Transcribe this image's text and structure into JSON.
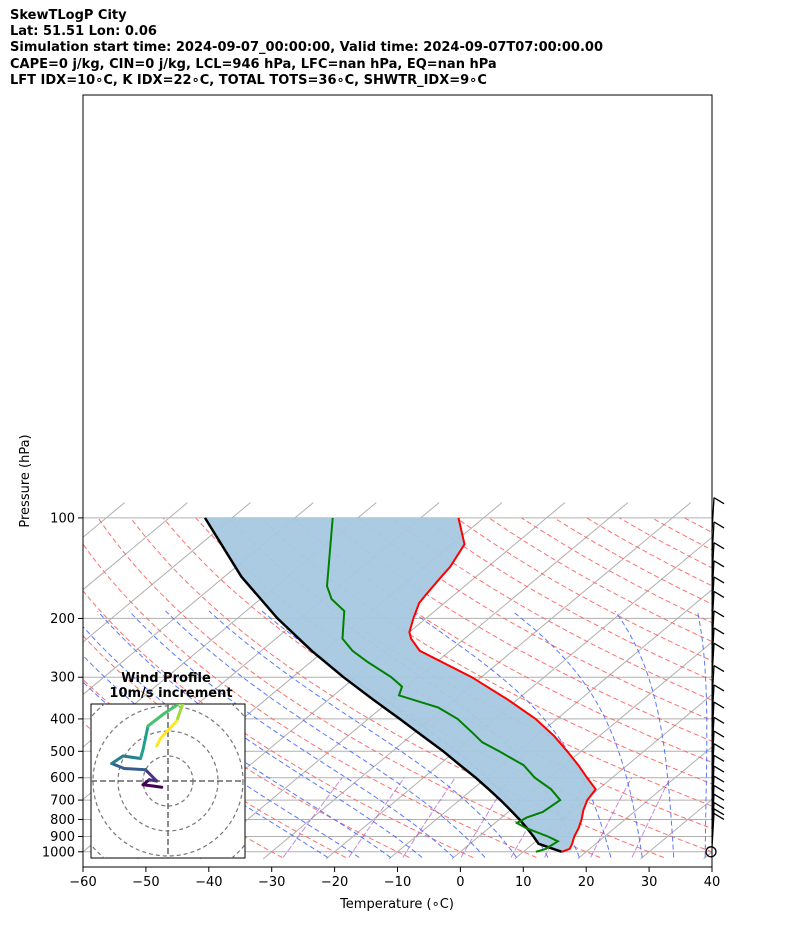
{
  "header": {
    "line1": "SkewTLogP City",
    "line2": "Lat: 51.51   Lon: 0.06",
    "line3": "Simulation start time: 2024-09-07_00:00:00, Valid time: 2024-09-07T07:00:00.00",
    "line4": "CAPE=0 j/kg, CIN=0 j/kg, LCL=946 hPa, LFC=nan hPa, EQ=nan hPa",
    "line5": "LFT IDX=10∘C, K IDX=22∘C, TOTAL TOTS=36∘C, SHWTR_IDX=9∘C"
  },
  "chart_data": {
    "type": "line",
    "title": "SkewTLogP City",
    "xlabel": "Temperature (∘C)",
    "ylabel": "Pressure (hPa)",
    "xlim": [
      -60,
      40
    ],
    "ylim": [
      1040,
      100
    ],
    "y_scale": "log",
    "skew": true,
    "grid": true,
    "x_ticks": [
      -60,
      -50,
      -40,
      -30,
      -20,
      -10,
      0,
      10,
      20,
      30,
      40
    ],
    "x_tick_labels": [
      "−60",
      "−50",
      "−40",
      "−30",
      "−20",
      "−10",
      "0",
      "10",
      "20",
      "30",
      "40"
    ],
    "y_ticks": [
      1000,
      900,
      800,
      700,
      600,
      500,
      400,
      300,
      200,
      100
    ],
    "y_tick_labels": [
      "1000",
      "900",
      "800",
      "700",
      "600",
      "500",
      "400",
      "300",
      "200",
      "100"
    ],
    "series": [
      {
        "role": "temperature",
        "color": "#ff0000",
        "points": [
          [
            1000,
            16.1
          ],
          [
            980,
            16.8
          ],
          [
            950,
            16.3
          ],
          [
            900,
            15.2
          ],
          [
            850,
            14.3
          ],
          [
            800,
            13.1
          ],
          [
            750,
            11.6
          ],
          [
            700,
            10.3
          ],
          [
            650,
            9.6
          ],
          [
            600,
            6.0
          ],
          [
            550,
            2.2
          ],
          [
            500,
            -2.2
          ],
          [
            450,
            -7.2
          ],
          [
            400,
            -13.4
          ],
          [
            350,
            -21.5
          ],
          [
            300,
            -31.5
          ],
          [
            250,
            -44.8
          ],
          [
            230,
            -48.5
          ],
          [
            220,
            -50.0
          ],
          [
            200,
            -52.0
          ],
          [
            180,
            -54.0
          ],
          [
            170,
            -54.5
          ],
          [
            150,
            -55.5
          ],
          [
            140,
            -56.0
          ],
          [
            120,
            -58.0
          ],
          [
            100,
            -64.0
          ]
        ]
      },
      {
        "role": "dewpoint",
        "color": "#008000",
        "points": [
          [
            1000,
            12.0
          ],
          [
            980,
            13.0
          ],
          [
            960,
            13.2
          ],
          [
            930,
            13.5
          ],
          [
            900,
            11.0
          ],
          [
            850,
            6.0
          ],
          [
            820,
            3.5
          ],
          [
            790,
            4.0
          ],
          [
            760,
            5.5
          ],
          [
            700,
            6.0
          ],
          [
            650,
            2.5
          ],
          [
            600,
            -2.3
          ],
          [
            550,
            -6.5
          ],
          [
            500,
            -13.0
          ],
          [
            470,
            -17.4
          ],
          [
            440,
            -20.8
          ],
          [
            400,
            -25.8
          ],
          [
            370,
            -31.0
          ],
          [
            340,
            -39.6
          ],
          [
            320,
            -40.8
          ],
          [
            300,
            -44.3
          ],
          [
            270,
            -51.0
          ],
          [
            250,
            -55.5
          ],
          [
            230,
            -59.4
          ],
          [
            210,
            -61.8
          ],
          [
            190,
            -64.4
          ],
          [
            175,
            -68.7
          ],
          [
            160,
            -71.9
          ],
          [
            100,
            -84.0
          ]
        ]
      },
      {
        "role": "parcel",
        "color": "#000000",
        "points": [
          [
            1000,
            16.1
          ],
          [
            946,
            10.9
          ],
          [
            900,
            8.7
          ],
          [
            850,
            6.1
          ],
          [
            800,
            3.2
          ],
          [
            750,
            0.0
          ],
          [
            700,
            -3.5
          ],
          [
            650,
            -7.4
          ],
          [
            600,
            -11.7
          ],
          [
            550,
            -16.6
          ],
          [
            500,
            -21.9
          ],
          [
            450,
            -28.1
          ],
          [
            400,
            -35.0
          ],
          [
            350,
            -42.9
          ],
          [
            300,
            -51.9
          ],
          [
            250,
            -62.0
          ],
          [
            200,
            -73.6
          ],
          [
            150,
            -87.3
          ],
          [
            100,
            -104.3
          ]
        ]
      }
    ],
    "shading": {
      "between": [
        "temperature",
        "parcel"
      ],
      "color": "#a6c8e0"
    },
    "wind_barbs": {
      "pressures": [
        1000,
        970,
        940,
        900,
        850,
        800,
        750,
        700,
        650,
        600,
        550,
        500,
        450,
        400,
        350,
        300,
        270,
        240,
        210,
        190,
        170,
        150,
        130,
        110
      ],
      "calm_marker_at": 1000
    },
    "hodograph": {
      "title": "Wind Profile",
      "subtitle": "10m/s increment",
      "rings": 4,
      "path": [
        [
          -0.5,
          -0.5
        ],
        [
          -1.2,
          -0.4
        ],
        [
          -2.0,
          -0.3
        ],
        [
          -1.5,
          0.1
        ],
        [
          -0.9,
          0.0
        ],
        [
          -1.8,
          0.9
        ],
        [
          -3.5,
          1.0
        ],
        [
          -4.5,
          1.4
        ],
        [
          -3.6,
          2.0
        ],
        [
          -2.2,
          1.8
        ],
        [
          -2.0,
          2.5
        ],
        [
          -1.6,
          4.4
        ],
        [
          -0.3,
          5.4
        ],
        [
          0.9,
          6.2
        ],
        [
          1.4,
          6.8
        ],
        [
          0.7,
          4.8
        ],
        [
          -0.6,
          3.4
        ],
        [
          -0.9,
          2.8
        ]
      ]
    }
  }
}
